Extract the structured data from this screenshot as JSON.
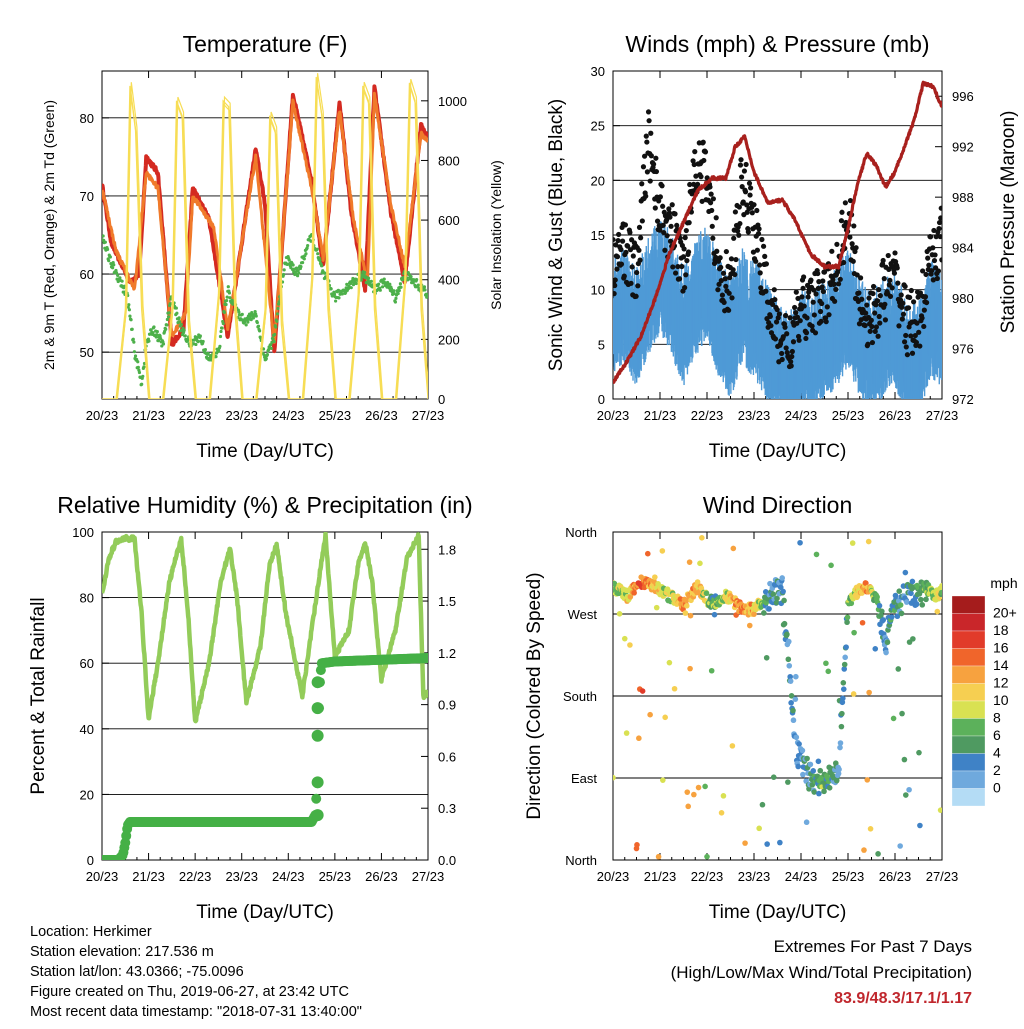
{
  "x_ticks": [
    "20/23",
    "21/23",
    "22/23",
    "23/23",
    "24/23",
    "25/23",
    "26/23",
    "27/23"
  ],
  "x_label": "Time (Day/UTC)",
  "info": {
    "location": "Location: Herkimer",
    "elevation": "Station elevation: 217.536 m",
    "latlon": "Station lat/lon: 43.0366; -75.0096",
    "created": "Figure created on Thu, 2019-06-27, at 23:42 UTC",
    "recent": "Most recent data timestamp: \"2018-07-31 13:40:00\""
  },
  "extremes": {
    "line1": "Extremes For Past 7 Days",
    "line2": "(High/Low/Max Wind/Total Precipitation)",
    "values": "83.9/48.3/17.1/1.17"
  },
  "chart_data": [
    {
      "type": "line",
      "title": "Temperature (F)",
      "xlabel": "Time (Day/UTC)",
      "ylabel": "2m & 9m T (Red, Orange) & 2m Td (Green)",
      "ylabel_right": "Solar Insolation (Yellow)",
      "xlim": [
        0,
        7
      ],
      "ylim": [
        44,
        86
      ],
      "ylim_right": [
        0,
        1100
      ],
      "yticks": [
        "50",
        "60",
        "70",
        "80"
      ],
      "yticks_right": [
        "0",
        "200",
        "400",
        "600",
        "800",
        "1000"
      ],
      "colors": {
        "t2m": "#d42a21",
        "t9m": "#f07a2a",
        "td": "#4db04a",
        "solar": "#f7dd55"
      },
      "series": [
        {
          "key": "t2m",
          "x": [
            0,
            0.2,
            0.6,
            0.8,
            0.95,
            1.2,
            1.5,
            1.75,
            1.95,
            2.3,
            2.7,
            2.95,
            3.3,
            3.5,
            3.7,
            4.1,
            4.5,
            4.75,
            5.1,
            5.35,
            5.65,
            5.85,
            6.2,
            6.5,
            6.85,
            7
          ],
          "y": [
            71.5,
            64,
            59,
            60,
            75,
            73,
            51,
            53,
            71,
            67,
            52,
            62,
            76,
            69,
            50,
            83,
            72,
            61,
            82,
            68,
            58,
            83.9,
            68,
            59,
            79,
            77.5
          ]
        },
        {
          "key": "t9m",
          "x": [
            0,
            0.3,
            0.7,
            0.95,
            1.2,
            1.5,
            1.8,
            1.95,
            2.4,
            2.7,
            2.95,
            3.3,
            3.7,
            4.1,
            4.5,
            4.75,
            5.1,
            5.4,
            5.7,
            5.85,
            6.2,
            6.5,
            6.85,
            7
          ],
          "y": [
            71,
            63,
            58,
            73,
            71,
            52,
            55,
            70,
            66,
            53,
            62,
            75,
            51,
            82,
            71,
            62,
            81,
            67,
            59,
            83,
            69,
            61,
            78,
            77
          ]
        },
        {
          "key": "td",
          "x": [
            0,
            0.15,
            0.4,
            0.55,
            0.7,
            0.85,
            0.95,
            1.1,
            1.3,
            1.5,
            1.7,
            1.9,
            2.1,
            2.3,
            2.5,
            2.7,
            2.9,
            3.1,
            3.3,
            3.5,
            3.7,
            3.95,
            4.2,
            4.5,
            4.75,
            5,
            5.2,
            5.4,
            5.6,
            5.85,
            6.1,
            6.3,
            6.5,
            6.7,
            6.9,
            7
          ],
          "y": [
            65,
            62,
            59,
            57,
            50,
            46,
            51,
            53,
            51,
            57,
            53,
            51,
            52,
            49,
            50,
            58,
            55,
            54,
            55,
            49,
            52,
            62,
            60,
            65,
            60,
            57,
            58,
            59,
            60,
            58,
            59,
            57,
            60,
            59,
            58,
            57
          ]
        },
        {
          "key": "solar",
          "x": [
            0,
            0.3,
            0.5,
            0.6,
            0.72,
            0.85,
            1,
            1.3,
            1.5,
            1.6,
            1.72,
            1.85,
            2,
            2.3,
            2.5,
            2.6,
            2.72,
            2.85,
            3,
            3.3,
            3.5,
            3.6,
            3.72,
            3.85,
            4,
            4.3,
            4.5,
            4.6,
            4.72,
            4.85,
            5,
            5.3,
            5.5,
            5.6,
            5.72,
            5.85,
            6,
            6.3,
            6.5,
            6.6,
            6.72,
            6.85,
            7
          ],
          "y": [
            0,
            0,
            300,
            1050,
            900,
            300,
            0,
            0,
            300,
            1000,
            950,
            250,
            0,
            0,
            350,
            1000,
            980,
            300,
            0,
            0,
            300,
            950,
            900,
            250,
            0,
            0,
            400,
            1080,
            950,
            300,
            0,
            0,
            350,
            1050,
            1000,
            300,
            0,
            0,
            400,
            1060,
            1000,
            300,
            0
          ]
        }
      ]
    },
    {
      "type": "scatter",
      "title": "Winds (mph) & Pressure (mb)",
      "xlabel": "Time (Day/UTC)",
      "ylabel": "Sonic Wind & Gust (Blue, Black)",
      "ylabel_right": "Station Pressure (Maroon)",
      "xlim": [
        0,
        7
      ],
      "ylim": [
        0,
        30
      ],
      "ylim_right": [
        972,
        998
      ],
      "yticks": [
        "0",
        "5",
        "10",
        "15",
        "20",
        "25",
        "30"
      ],
      "yticks_right": [
        "972",
        "976",
        "980",
        "984",
        "988",
        "992",
        "996"
      ],
      "colors": {
        "wind": "#4f9ad6",
        "gust": "#111111",
        "pressure": "#a8201d"
      },
      "series": [
        {
          "key": "wind",
          "x": [
            0,
            0.25,
            0.5,
            0.75,
            1,
            1.25,
            1.5,
            1.75,
            2,
            2.25,
            2.5,
            2.75,
            3,
            3.25,
            3.5,
            3.75,
            4,
            4.25,
            4.5,
            4.75,
            5,
            5.25,
            5.5,
            5.75,
            6,
            6.25,
            6.5,
            6.75,
            7
          ],
          "y": [
            8,
            9,
            7,
            10,
            12,
            10,
            7,
            10,
            11,
            8,
            6,
            9,
            8,
            6,
            4,
            3,
            5,
            5,
            6,
            7,
            9,
            6,
            5,
            6,
            7,
            4,
            4,
            8,
            7
          ]
        },
        {
          "key": "gust",
          "x": [
            0,
            0.25,
            0.5,
            0.75,
            1,
            1.25,
            1.5,
            1.75,
            2,
            2.25,
            2.5,
            2.75,
            3,
            3.25,
            3.5,
            3.75,
            4,
            4.25,
            4.5,
            4.75,
            5,
            5.25,
            5.5,
            5.75,
            6,
            6.25,
            6.5,
            6.75,
            7
          ],
          "y": [
            12,
            14,
            11,
            24,
            17,
            15,
            12,
            22,
            20,
            12,
            10,
            20,
            16,
            10,
            6,
            5,
            8,
            9,
            9,
            12,
            17,
            9,
            7,
            10,
            11,
            7,
            7,
            12,
            15
          ]
        },
        {
          "key": "pressure",
          "x": [
            0,
            0.3,
            0.6,
            0.9,
            1.2,
            1.5,
            1.8,
            2.1,
            2.4,
            2.6,
            2.8,
            3,
            3.3,
            3.6,
            3.9,
            4.2,
            4.5,
            4.8,
            5,
            5.2,
            5.4,
            5.6,
            5.8,
            6,
            6.2,
            6.4,
            6.6,
            6.8,
            7
          ],
          "y": [
            973.3,
            975,
            977,
            980,
            983.5,
            986,
            988.5,
            989.5,
            989.5,
            992,
            992.8,
            990,
            987.5,
            987.8,
            986,
            983.5,
            982.5,
            982.5,
            985.5,
            989,
            991.5,
            990.5,
            988.8,
            990,
            992,
            994,
            997,
            996.8,
            995.2
          ]
        }
      ]
    },
    {
      "type": "line",
      "title": "Relative Humidity (%) & Precipitation (in)",
      "xlabel": "Time (Day/UTC)",
      "ylabel": "Percent & Total Rainfall",
      "xlim": [
        0,
        7
      ],
      "ylim": [
        0,
        100
      ],
      "ylim_right": [
        0,
        1.9
      ],
      "yticks": [
        "0",
        "20",
        "40",
        "60",
        "80",
        "100"
      ],
      "yticks_right": [
        "0.0",
        "0.3",
        "0.6",
        "0.9",
        "1.2",
        "1.5",
        "1.8"
      ],
      "colors": {
        "rh": "#93cc5a",
        "precip": "#45b046"
      },
      "series": [
        {
          "key": "rh",
          "x": [
            0,
            0.15,
            0.3,
            0.5,
            0.7,
            0.85,
            1,
            1.2,
            1.45,
            1.7,
            1.85,
            2,
            2.3,
            2.55,
            2.75,
            2.9,
            3.1,
            3.4,
            3.6,
            3.75,
            3.95,
            4.3,
            4.5,
            4.65,
            4.8,
            5,
            5.3,
            5.5,
            5.65,
            5.8,
            6,
            6.3,
            6.55,
            6.8,
            6.9,
            7
          ],
          "y": [
            81,
            92,
            97,
            98,
            98,
            75,
            43,
            60,
            85,
            98,
            75,
            42,
            60,
            85,
            95,
            80,
            48,
            65,
            90,
            96,
            75,
            50,
            70,
            85,
            99,
            62,
            70,
            90,
            97,
            85,
            55,
            70,
            92,
            99,
            50,
            51
          ]
        },
        {
          "key": "precip",
          "x": [
            0,
            0.35,
            0.45,
            0.5,
            0.55,
            0.6,
            1,
            2,
            3,
            4,
            4.5,
            4.58,
            4.62,
            4.64,
            4.66,
            4.68,
            4.7,
            4.72,
            5,
            6,
            7
          ],
          "y": [
            0,
            0,
            0.03,
            0.1,
            0.2,
            0.22,
            0.22,
            0.22,
            0.22,
            0.22,
            0.22,
            0.26,
            0.45,
            0.72,
            0.88,
            1.03,
            1.1,
            1.14,
            1.15,
            1.16,
            1.17
          ]
        }
      ]
    },
    {
      "type": "scatter",
      "title": "Wind Direction",
      "xlabel": "Time (Day/UTC)",
      "ylabel": "Direction (Colored By Speed)",
      "xlim": [
        0,
        7
      ],
      "ylim": [
        0,
        360
      ],
      "yticks": [
        "North",
        "East",
        "South",
        "West",
        "North"
      ],
      "colorbar": {
        "title": "mph",
        "labels": [
          "20+",
          "18",
          "16",
          "14",
          "12",
          "10",
          "8",
          "6",
          "4",
          "2",
          "0"
        ],
        "colors": [
          "#a51c1c",
          "#c9262a",
          "#e13b2a",
          "#f0652b",
          "#f7a23f",
          "#f6cf51",
          "#d9e152",
          "#5cb15b",
          "#4f9a61",
          "#3f82c6",
          "#6fa9dd",
          "#b4dcf5"
        ]
      },
      "series": [
        {
          "key": "dir",
          "x": [
            0,
            0.3,
            0.6,
            0.9,
            1.2,
            1.5,
            1.8,
            2.1,
            2.4,
            2.7,
            3,
            3.3,
            3.6,
            3.9,
            4.2,
            4.5,
            4.8,
            5,
            5.2,
            5.4,
            5.6,
            5.8,
            6,
            6.3,
            6.6,
            6.9,
            7
          ],
          "y": [
            300,
            290,
            305,
            300,
            290,
            280,
            300,
            280,
            290,
            278,
            275,
            290,
            295,
            120,
            90,
            85,
            100,
            280,
            295,
            300,
            290,
            240,
            280,
            290,
            300,
            290,
            295
          ],
          "speed": [
            9,
            10,
            16,
            12,
            8,
            14,
            12,
            6,
            10,
            14,
            12,
            4,
            4,
            3,
            4,
            7,
            3,
            6,
            12,
            14,
            6,
            4,
            5,
            4,
            7,
            10,
            8
          ]
        }
      ]
    }
  ]
}
